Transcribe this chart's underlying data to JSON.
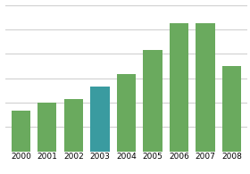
{
  "categories": [
    "2000",
    "2001",
    "2002",
    "2003",
    "2004",
    "2005",
    "2006",
    "2007",
    "2008"
  ],
  "values": [
    2.0,
    2.4,
    2.6,
    3.2,
    3.8,
    5.0,
    6.3,
    6.3,
    4.2
  ],
  "bar_colors": [
    "#6aaa5e",
    "#6aaa5e",
    "#6aaa5e",
    "#3a9ba0",
    "#6aaa5e",
    "#6aaa5e",
    "#6aaa5e",
    "#6aaa5e",
    "#6aaa5e"
  ],
  "ylim": [
    0,
    7.2
  ],
  "grid_color": "#cccccc",
  "background_color": "#ffffff",
  "tick_fontsize": 6.5,
  "bar_width": 0.72,
  "num_gridlines": 6
}
